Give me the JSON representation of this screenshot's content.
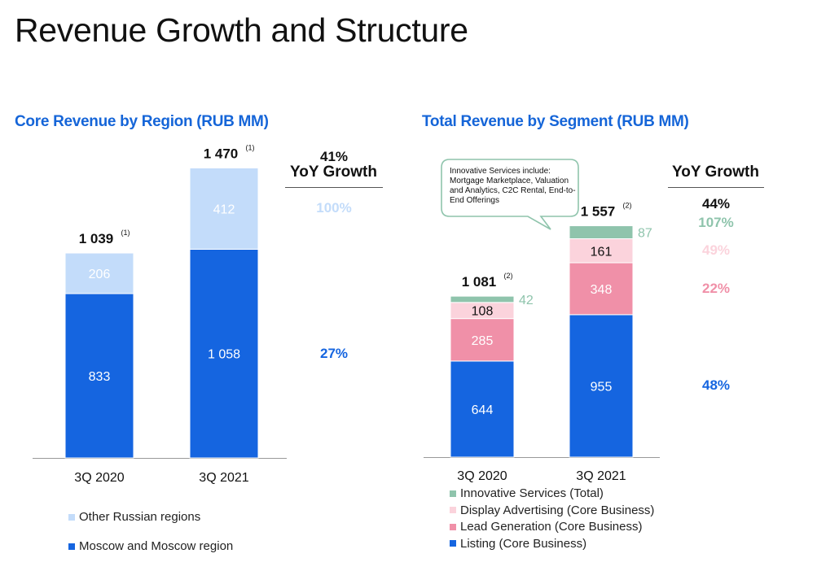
{
  "page": {
    "title": "Revenue Growth and Structure"
  },
  "chart_data": [
    {
      "type": "bar",
      "stacked": true,
      "title": "Core Revenue by Region (RUB MM)",
      "xlabel": "",
      "ylabel": "",
      "categories": [
        "3Q 2020",
        "3Q 2021"
      ],
      "series": [
        {
          "name": "Moscow and Moscow region",
          "values": [
            833,
            1058
          ],
          "value_labels": [
            "833",
            "1 058"
          ],
          "color": "#1565e0"
        },
        {
          "name": "Other Russian regions",
          "values": [
            206,
            412
          ],
          "value_labels": [
            "206",
            "412"
          ],
          "color": "#c3dcfa"
        }
      ],
      "totals": [
        1039,
        1470
      ],
      "total_labels": [
        "1 039",
        "1 470"
      ],
      "total_footnote": "(1)",
      "yoy_header": "YoY Growth",
      "yoy": [
        {
          "series": "Total",
          "label": "41%",
          "color": "#111111"
        },
        {
          "series": "Other Russian regions",
          "label": "100%",
          "color": "#c3dcfa"
        },
        {
          "series": "Moscow and Moscow region",
          "label": "27%",
          "color": "#1565e0"
        }
      ],
      "legend": [
        {
          "label": "Other Russian regions",
          "color": "#c3dcfa"
        },
        {
          "label": "Moscow and Moscow region",
          "color": "#1565e0"
        }
      ],
      "legend_position": "bottom-left",
      "grid": false
    },
    {
      "type": "bar",
      "stacked": true,
      "title": "Total Revenue by Segment (RUB MM)",
      "xlabel": "",
      "ylabel": "",
      "categories": [
        "3Q 2020",
        "3Q 2021"
      ],
      "series": [
        {
          "name": "Listing (Core Business)",
          "values": [
            644,
            955
          ],
          "value_labels": [
            "644",
            "955"
          ],
          "color": "#1565e0"
        },
        {
          "name": "Lead Generation (Core Business)",
          "values": [
            285,
            348
          ],
          "value_labels": [
            "285",
            "348"
          ],
          "color": "#f090a8"
        },
        {
          "name": "Display Advertising (Core Business)",
          "values": [
            108,
            161
          ],
          "value_labels": [
            "108",
            "161"
          ],
          "color": "#fbd3dc"
        },
        {
          "name": "Innovative Services (Total)",
          "values": [
            42,
            87
          ],
          "value_labels": [
            "42",
            "87"
          ],
          "color": "#8fc4ac"
        }
      ],
      "totals": [
        1081,
        1557
      ],
      "total_labels": [
        "1 081",
        "1 557"
      ],
      "total_footnote": "(2)",
      "yoy_header": "YoY Growth",
      "yoy": [
        {
          "series": "Total",
          "label": "44%",
          "color": "#111111"
        },
        {
          "series": "Innovative Services (Total)",
          "label": "107%",
          "color": "#8fc4ac"
        },
        {
          "series": "Display Advertising (Core Business)",
          "label": "49%",
          "color": "#fbd3dc"
        },
        {
          "series": "Lead Generation (Core Business)",
          "label": "22%",
          "color": "#f090a8"
        },
        {
          "series": "Listing (Core Business)",
          "label": "48%",
          "color": "#1565e0"
        }
      ],
      "callout": "Innovative Services include: Mortgage Marketplace, Valuation and Analytics, C2C Rental, End-to-End Offerings",
      "legend": [
        {
          "label": "Innovative Services (Total)",
          "color": "#8fc4ac"
        },
        {
          "label": "Display Advertising (Core Business)",
          "color": "#fbd3dc"
        },
        {
          "label": "Lead Generation (Core Business)",
          "color": "#f090a8"
        },
        {
          "label": "Listing (Core Business)",
          "color": "#1565e0"
        }
      ],
      "legend_position": "bottom",
      "grid": false
    }
  ]
}
